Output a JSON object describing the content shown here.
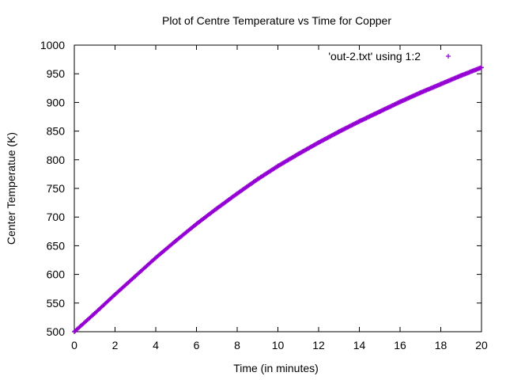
{
  "chart_data": {
    "type": "scatter",
    "title": "Plot of Centre Temperature vs Time for Copper",
    "xlabel": "Time (in minutes)",
    "ylabel": "Center Temperatue (K)",
    "xlim": [
      0,
      20
    ],
    "ylim": [
      500,
      1000
    ],
    "xticks": [
      "0",
      "2",
      "4",
      "6",
      "8",
      "10",
      "12",
      "14",
      "16",
      "18",
      "20"
    ],
    "yticks": [
      "500",
      "550",
      "600",
      "650",
      "700",
      "750",
      "800",
      "850",
      "900",
      "950",
      "1000"
    ],
    "grid": false,
    "legend_position": "top-right",
    "series": [
      {
        "name": "'out-2.txt' using 1:2",
        "color": "#9400d3",
        "marker": "plus",
        "x": [
          0,
          1,
          2,
          3,
          4,
          5,
          6,
          7,
          8,
          9,
          10,
          11,
          12,
          13,
          14,
          15,
          16,
          17,
          18,
          19,
          20
        ],
        "y": [
          500,
          532,
          565,
          597,
          629,
          659,
          688,
          715,
          741,
          766,
          789,
          810,
          830,
          849,
          867,
          884,
          901,
          917,
          932,
          947,
          961
        ]
      }
    ]
  }
}
